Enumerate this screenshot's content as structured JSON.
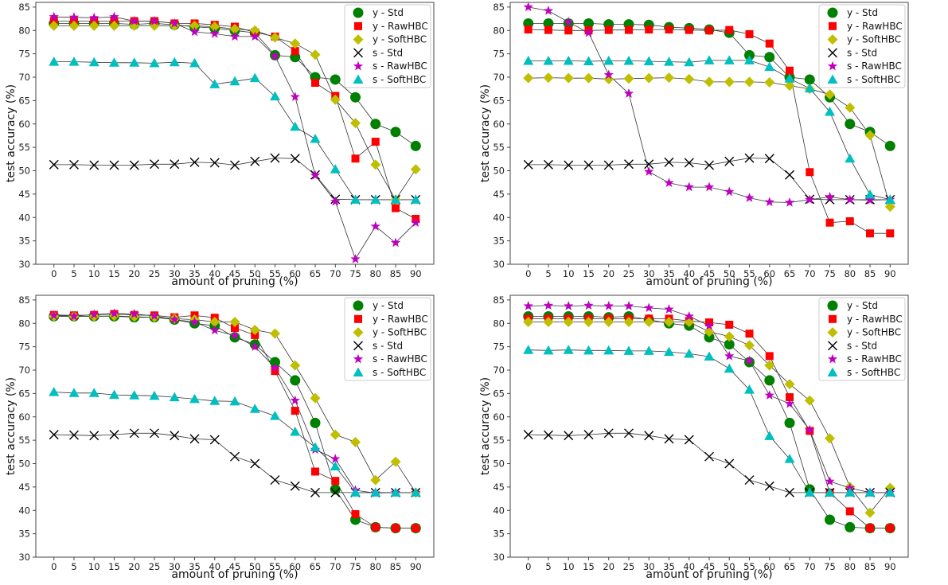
{
  "chart_data": [
    {
      "type": "line",
      "xlabel": "amount of pruning (%)",
      "ylabel": "test accuracy (%)",
      "ylim": [
        30,
        86
      ],
      "legend_position": "top-right",
      "x": [
        0,
        5,
        10,
        15,
        20,
        25,
        30,
        35,
        40,
        45,
        50,
        55,
        60,
        65,
        70,
        75,
        80,
        85,
        90
      ],
      "y_ticks": [
        30,
        35,
        40,
        45,
        50,
        55,
        60,
        65,
        70,
        75,
        80,
        85
      ],
      "series": [
        {
          "name": "y - Std",
          "marker": "circle",
          "color": "#008000",
          "values": [
            81.5,
            81.5,
            81.5,
            81.5,
            81.3,
            81.5,
            81.2,
            80.8,
            80.5,
            80.0,
            79.5,
            74.7,
            74.3,
            70.0,
            69.5,
            65.7,
            60.0,
            58.3,
            55.3
          ]
        },
        {
          "name": "y - RawHBC",
          "marker": "square",
          "color": "#ff0000",
          "values": [
            82.0,
            82.0,
            82.0,
            82.0,
            82.0,
            82.0,
            81.5,
            81.5,
            81.2,
            80.8,
            79.6,
            78.7,
            75.6,
            68.8,
            66.0,
            52.6,
            56.2,
            42.0,
            39.7
          ]
        },
        {
          "name": "y - SoftHBC",
          "marker": "diamond",
          "color": "#bfbf00",
          "values": [
            81.0,
            81.0,
            81.0,
            81.0,
            81.0,
            81.0,
            81.0,
            81.0,
            80.8,
            80.3,
            80.0,
            78.5,
            77.2,
            74.8,
            65.2,
            60.2,
            51.3,
            43.8,
            50.3
          ]
        },
        {
          "name": "s - Std",
          "marker": "x",
          "color": "#000000",
          "values": [
            51.3,
            51.3,
            51.2,
            51.2,
            51.2,
            51.4,
            51.4,
            51.8,
            51.7,
            51.2,
            52.0,
            52.7,
            52.6,
            49.1,
            43.9,
            43.8,
            43.8,
            43.8,
            43.8
          ]
        },
        {
          "name": "s - RawHBC",
          "marker": "star",
          "color": "#bf00bf",
          "values": [
            82.9,
            82.8,
            82.7,
            82.9,
            82.0,
            82.0,
            81.5,
            79.7,
            79.3,
            78.7,
            78.7,
            74.5,
            65.8,
            49.0,
            43.4,
            31.1,
            38.1,
            34.6,
            38.9
          ]
        },
        {
          "name": "s - SoftHBC",
          "marker": "triangle",
          "color": "#00bfbf",
          "values": [
            73.3,
            73.3,
            73.2,
            73.1,
            73.1,
            73.0,
            73.2,
            73.0,
            68.5,
            69.1,
            69.8,
            65.9,
            59.4,
            56.8,
            50.3,
            43.8,
            43.8,
            43.8,
            43.8
          ]
        }
      ]
    },
    {
      "type": "line",
      "xlabel": "amount of pruning (%)",
      "ylabel": "test accuracy (%)",
      "ylim": [
        30,
        86
      ],
      "legend_position": "top-right",
      "x": [
        0,
        5,
        10,
        15,
        20,
        25,
        30,
        35,
        40,
        45,
        50,
        55,
        60,
        65,
        70,
        75,
        80,
        85,
        90
      ],
      "y_ticks": [
        30,
        35,
        40,
        45,
        50,
        55,
        60,
        65,
        70,
        75,
        80,
        85
      ],
      "series": [
        {
          "name": "y - Std",
          "marker": "circle",
          "color": "#008000",
          "values": [
            81.5,
            81.5,
            81.5,
            81.5,
            81.3,
            81.3,
            81.2,
            80.7,
            80.5,
            80.2,
            79.5,
            74.7,
            74.3,
            70.0,
            69.5,
            65.7,
            60.0,
            58.3,
            55.3
          ]
        },
        {
          "name": "y - RawHBC",
          "marker": "square",
          "color": "#ff0000",
          "values": [
            80.2,
            80.1,
            80.0,
            80.0,
            80.1,
            80.1,
            80.2,
            80.2,
            80.1,
            80.0,
            80.1,
            79.2,
            77.2,
            71.4,
            49.7,
            38.9,
            39.2,
            36.6,
            36.6
          ]
        },
        {
          "name": "y - SoftHBC",
          "marker": "diamond",
          "color": "#bfbf00",
          "values": [
            69.8,
            69.9,
            69.8,
            69.8,
            69.6,
            69.7,
            69.8,
            69.9,
            69.6,
            69.0,
            69.0,
            69.0,
            68.9,
            68.2,
            67.5,
            66.3,
            63.5,
            57.6,
            42.3
          ]
        },
        {
          "name": "s - Std",
          "marker": "x",
          "color": "#000000",
          "values": [
            51.3,
            51.3,
            51.2,
            51.2,
            51.2,
            51.4,
            51.4,
            51.8,
            51.7,
            51.2,
            52.0,
            52.7,
            52.6,
            49.1,
            43.9,
            43.8,
            43.8,
            43.8,
            43.8
          ]
        },
        {
          "name": "s - RawHBC",
          "marker": "star",
          "color": "#bf00bf",
          "values": [
            85.0,
            84.2,
            81.8,
            79.5,
            70.5,
            66.5,
            49.8,
            47.4,
            46.5,
            46.5,
            45.5,
            44.2,
            43.3,
            43.2,
            43.8,
            44.4,
            43.8,
            43.7,
            43.8
          ]
        },
        {
          "name": "s - SoftHBC",
          "marker": "triangle",
          "color": "#00bfbf",
          "values": [
            73.5,
            73.5,
            73.5,
            73.4,
            73.5,
            73.5,
            73.4,
            73.3,
            73.2,
            73.6,
            73.6,
            73.6,
            72.2,
            69.7,
            67.6,
            62.6,
            52.6,
            44.9,
            43.8
          ]
        }
      ]
    },
    {
      "type": "line",
      "xlabel": "amount of pruning (%)",
      "ylabel": "test accuracy (%)",
      "ylim": [
        30,
        86
      ],
      "legend_position": "top-right",
      "x": [
        0,
        5,
        10,
        15,
        20,
        25,
        30,
        35,
        40,
        45,
        50,
        55,
        60,
        65,
        70,
        75,
        80,
        85,
        90
      ],
      "y_ticks": [
        30,
        35,
        40,
        45,
        50,
        55,
        60,
        65,
        70,
        75,
        80,
        85
      ],
      "series": [
        {
          "name": "y - Std",
          "marker": "circle",
          "color": "#008000",
          "values": [
            81.5,
            81.5,
            81.5,
            81.5,
            81.3,
            81.3,
            80.8,
            80.0,
            79.5,
            77.0,
            75.5,
            71.7,
            67.8,
            58.7,
            44.5,
            38.0,
            36.4,
            36.2,
            36.2
          ]
        },
        {
          "name": "y - RawHBC",
          "marker": "square",
          "color": "#ff0000",
          "values": [
            81.8,
            81.7,
            81.8,
            82.0,
            81.8,
            81.7,
            81.3,
            81.7,
            81.2,
            79.0,
            77.5,
            69.8,
            61.3,
            48.3,
            46.3,
            39.2,
            36.4,
            36.2,
            36.2
          ]
        },
        {
          "name": "y - SoftHBC",
          "marker": "diamond",
          "color": "#bfbf00",
          "values": [
            81.5,
            81.5,
            81.5,
            81.6,
            81.4,
            81.3,
            81.0,
            80.8,
            80.3,
            80.3,
            78.6,
            77.8,
            71.0,
            64.0,
            56.2,
            54.6,
            46.5,
            50.4,
            43.8
          ]
        },
        {
          "name": "s - Std",
          "marker": "x",
          "color": "#000000",
          "values": [
            56.2,
            56.1,
            56.0,
            56.2,
            56.5,
            56.5,
            56.0,
            55.3,
            55.1,
            51.5,
            50.0,
            46.5,
            45.2,
            43.8,
            43.8,
            43.8,
            43.8,
            43.8,
            43.8
          ]
        },
        {
          "name": "s - RawHBC",
          "marker": "star",
          "color": "#bf00bf",
          "values": [
            81.7,
            81.5,
            81.9,
            82.1,
            82.0,
            81.6,
            80.8,
            80.3,
            78.5,
            77.4,
            75.0,
            70.5,
            63.5,
            53.0,
            51.0,
            44.3,
            43.7,
            43.8,
            43.8
          ]
        },
        {
          "name": "s - SoftHBC",
          "marker": "triangle",
          "color": "#00bfbf",
          "values": [
            65.3,
            65.1,
            65.1,
            64.7,
            64.6,
            64.5,
            64.2,
            63.8,
            63.4,
            63.3,
            61.7,
            60.2,
            56.8,
            53.5,
            49.4,
            43.8,
            43.8,
            43.8,
            43.8
          ]
        }
      ]
    },
    {
      "type": "line",
      "xlabel": "amount of pruning (%)",
      "ylabel": "test accuracy (%)",
      "ylim": [
        30,
        86
      ],
      "legend_position": "top-right",
      "x": [
        0,
        5,
        10,
        15,
        20,
        25,
        30,
        35,
        40,
        45,
        50,
        55,
        60,
        65,
        70,
        75,
        80,
        85,
        90
      ],
      "y_ticks": [
        30,
        35,
        40,
        45,
        50,
        55,
        60,
        65,
        70,
        75,
        80,
        85
      ],
      "series": [
        {
          "name": "y - Std",
          "marker": "circle",
          "color": "#008000",
          "values": [
            81.5,
            81.5,
            81.5,
            81.5,
            81.3,
            81.5,
            80.8,
            80.0,
            79.5,
            77.0,
            75.5,
            71.7,
            67.8,
            58.7,
            44.5,
            38.0,
            36.4,
            36.2,
            36.2
          ]
        },
        {
          "name": "y - RawHBC",
          "marker": "square",
          "color": "#ff0000",
          "values": [
            81.0,
            81.0,
            81.0,
            81.0,
            81.0,
            81.0,
            81.0,
            81.0,
            80.5,
            80.2,
            79.7,
            77.8,
            73.0,
            64.2,
            57.0,
            43.8,
            39.8,
            36.2,
            36.2
          ]
        },
        {
          "name": "y - SoftHBC",
          "marker": "diamond",
          "color": "#bfbf00",
          "values": [
            80.3,
            80.3,
            80.3,
            80.3,
            80.3,
            80.3,
            80.3,
            80.3,
            80.3,
            78.2,
            77.2,
            75.3,
            71.0,
            67.0,
            63.5,
            55.4,
            45.0,
            39.5,
            44.8
          ]
        },
        {
          "name": "s - Std",
          "marker": "x",
          "color": "#000000",
          "values": [
            56.2,
            56.1,
            56.0,
            56.2,
            56.5,
            56.5,
            56.0,
            55.3,
            55.1,
            51.5,
            50.0,
            46.5,
            45.2,
            43.8,
            43.8,
            43.8,
            43.8,
            43.8,
            43.8
          ]
        },
        {
          "name": "s - RawHBC",
          "marker": "star",
          "color": "#bf00bf",
          "values": [
            83.7,
            83.8,
            83.7,
            83.8,
            83.7,
            83.7,
            83.3,
            83.0,
            81.5,
            79.5,
            73.0,
            72.0,
            64.6,
            62.8,
            57.2,
            46.2,
            44.8,
            43.8,
            43.8
          ]
        },
        {
          "name": "s - SoftHBC",
          "marker": "triangle",
          "color": "#00bfbf",
          "values": [
            74.3,
            74.2,
            74.3,
            74.2,
            74.2,
            74.1,
            74.1,
            73.9,
            73.5,
            72.9,
            70.3,
            65.8,
            55.9,
            51.0,
            43.8,
            43.8,
            43.8,
            43.8,
            43.8
          ]
        }
      ]
    }
  ]
}
